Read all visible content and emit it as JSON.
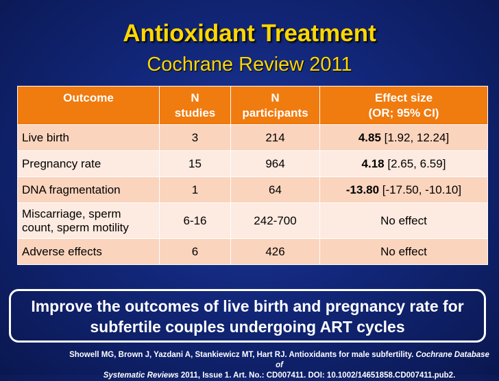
{
  "slide": {
    "title": "Antioxidant Treatment",
    "subtitle": "Cochrane Review 2011"
  },
  "table": {
    "headers": {
      "outcome": "Outcome",
      "studies_line1": "N",
      "studies_line2": "studies",
      "participants_line1": "N",
      "participants_line2": "participants",
      "effect_line1": "Effect size",
      "effect_line2": "(OR; 95% CI)"
    },
    "rows": [
      {
        "outcome": "Live birth",
        "studies": "3",
        "participants": "214",
        "effect_bold": "4.85",
        "effect_rest": " [1.92, 12.24]"
      },
      {
        "outcome": "Pregnancy rate",
        "studies": "15",
        "participants": "964",
        "effect_bold": "4.18",
        "effect_rest": " [2.65, 6.59]"
      },
      {
        "outcome": "DNA fragmentation",
        "studies": "1",
        "participants": "64",
        "effect_bold": "-13.80",
        "effect_rest": " [-17.50, -10.10]"
      },
      {
        "outcome_line1": "Miscarriage, sperm",
        "outcome_line2": "count, sperm motility",
        "studies": "6-16",
        "participants": "242-700",
        "effect": "No effect"
      },
      {
        "outcome": "Adverse effects",
        "studies": "6",
        "participants": "426",
        "effect": "No effect"
      }
    ]
  },
  "callout": {
    "line1": "Improve the outcomes of live birth and pregnancy rate for",
    "line2": "subfertile couples undergoing ART cycles"
  },
  "citation": {
    "authors": "Showell MG, Brown J, Yazdani A, Stankiewicz MT, Hart RJ. Antioxidants for male subfertility. ",
    "journal1": "Cochrane Database of",
    "journal2": "Systematic Reviews",
    "details": " 2011, Issue 1. Art. No.: CD007411. DOI: 10.1002/14651858.CD007411.pub2."
  }
}
